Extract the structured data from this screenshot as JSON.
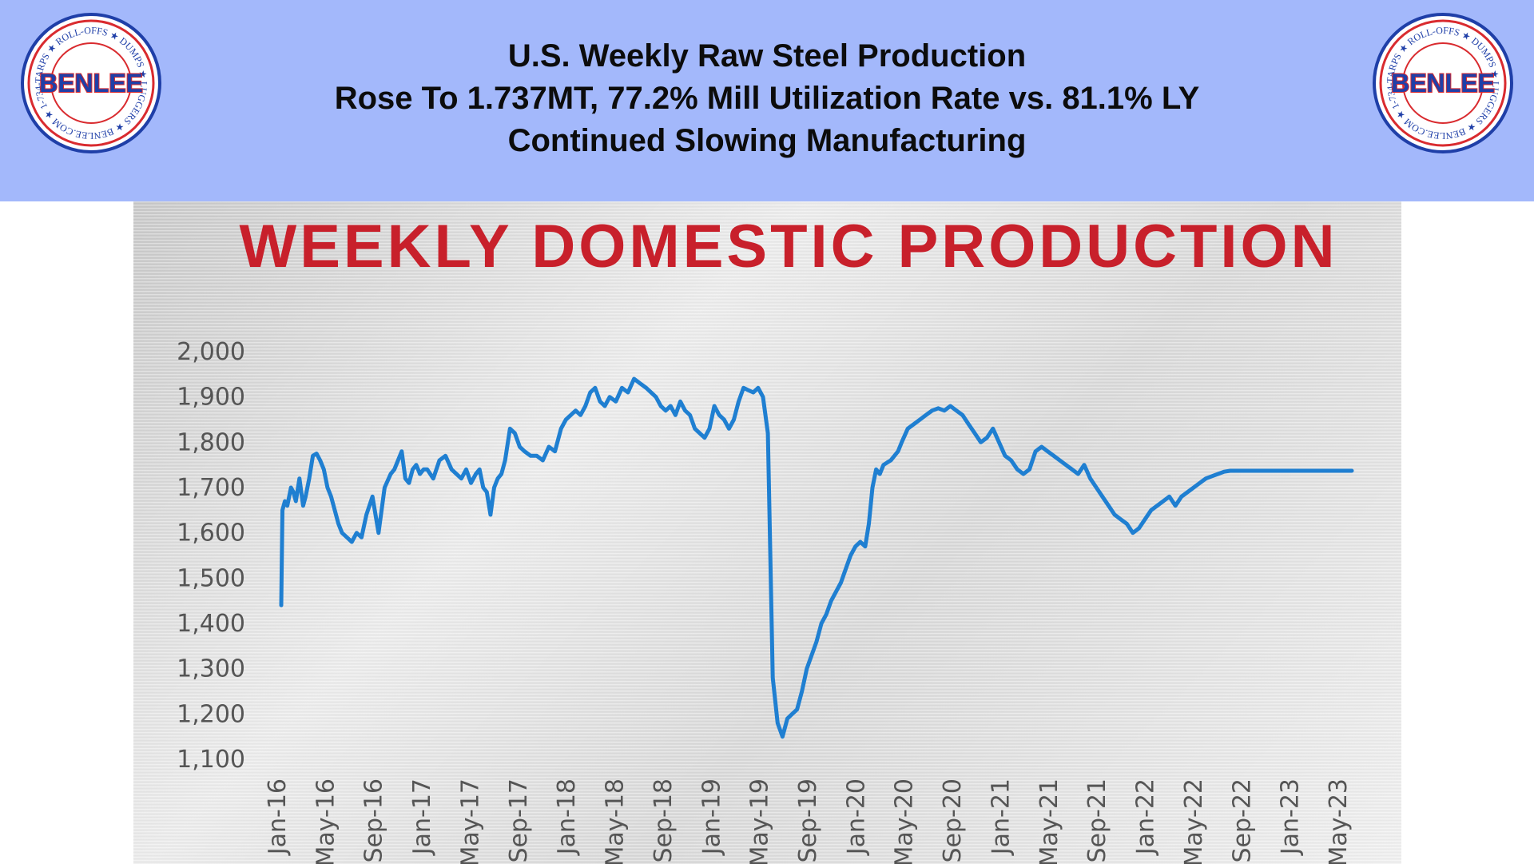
{
  "header": {
    "line1": "U.S. Weekly Raw Steel Production",
    "line2": "Rose To 1.737MT, 77.2% Mill Utilization Rate vs. 81.1% LY",
    "line3": "Continued Slowing Manufacturing",
    "background_color": "#a3b8fb"
  },
  "logo": {
    "brand": "BENLEE",
    "ring_text": "TARPS ★ ROLL-OFFS ★ DUMPS ★ LUGGERS ★ BENLEE.COM ★ 1-734-722-8100 ★ PARTS ★",
    "colors": {
      "red": "#d92b2f",
      "blue": "#1f3fa8"
    }
  },
  "chart_data": {
    "type": "line",
    "title": "WEEKLY DOMESTIC PRODUCTION",
    "xlabel": "",
    "ylabel": "",
    "ylim": [
      1100,
      2000
    ],
    "yticks": [
      2000,
      1900,
      1800,
      1700,
      1600,
      1500,
      1400,
      1300,
      1200,
      1100
    ],
    "ytick_labels": [
      "2,000",
      "1,900",
      "1,800",
      "1,700",
      "1,600",
      "1,500",
      "1,400",
      "1,300",
      "1,200",
      "1,100"
    ],
    "xtick_labels": [
      "Jan-16",
      "May-16",
      "Sep-16",
      "Jan-17",
      "May-17",
      "Sep-17",
      "Jan-18",
      "May-18",
      "Sep-18",
      "Jan-19",
      "May-19",
      "Sep-19",
      "Jan-20",
      "May-20",
      "Sep-20",
      "Jan-21",
      "May-21",
      "Sep-21",
      "Jan-22",
      "May-22",
      "Sep-22",
      "Jan-23",
      "May-23"
    ],
    "line_color": "#1f7fd1",
    "grid": false,
    "series": [
      {
        "x": [
          0,
          0.1,
          0.3,
          0.5,
          0.8,
          1.0,
          1.2,
          1.5,
          1.8,
          2.0,
          2.3,
          2.6,
          2.9,
          3.2,
          3.5,
          3.8,
          4.1,
          4.4,
          4.7,
          5.0,
          5.4,
          5.8,
          6.2,
          6.6,
          7.0,
          7.5,
          8.0,
          8.5,
          9.0,
          9.3,
          9.6,
          9.9,
          10.2,
          10.5,
          10.8,
          11.1,
          11.4,
          11.7,
          12.0,
          12.5,
          13.0,
          13.5,
          14.0,
          14.4,
          14.8,
          15.2,
          15.6,
          16.0,
          16.3,
          16.6,
          16.9,
          17.2,
          17.5,
          17.8,
          18.1,
          18.4,
          18.8,
          19.2,
          19.6,
          20.0,
          20.5,
          21.0,
          21.5,
          22.0,
          22.5,
          23.0,
          23.4,
          23.8,
          24.2,
          24.6,
          25.0,
          25.4,
          25.8,
          26.2,
          26.6,
          27.0,
          27.5,
          28.0,
          28.5,
          29.0,
          29.5,
          30.0,
          30.4,
          30.8,
          31.2,
          31.6,
          32.0,
          32.4,
          32.8,
          33.2,
          33.6,
          34.0,
          34.4,
          34.8,
          35.2,
          35.6,
          36.0,
          36.4,
          36.8,
          37.2,
          37.6,
          38.0,
          38.4,
          38.8,
          39.2,
          39.6,
          40.0,
          40.4,
          40.8,
          41.2,
          41.6,
          42.0,
          42.4,
          42.8,
          43.2,
          43.6,
          44.0,
          44.4,
          44.8,
          45.2,
          45.6,
          46.0,
          46.4,
          46.8,
          47.2,
          47.6,
          48.0,
          48.3,
          48.6,
          48.9,
          49.2,
          49.5,
          49.8,
          50.1,
          50.4,
          50.7,
          51.0,
          51.5,
          52.0,
          52.5,
          53.0,
          53.5,
          54.0,
          54.5,
          55.0,
          55.5,
          56.0,
          56.5,
          57.0,
          57.5,
          58.0,
          58.5,
          59.0,
          59.5,
          60.0,
          60.5,
          61.0,
          61.5,
          62.0,
          62.5,
          63.0,
          63.5,
          64.0,
          64.5,
          65.0,
          65.5,
          66.0,
          66.5,
          67.0,
          67.5,
          68.0,
          68.5,
          69.0,
          69.5,
          70.0,
          70.5,
          71.0,
          71.5,
          72.0,
          72.5,
          73.0,
          73.5,
          74.0,
          74.5,
          75.0,
          75.5,
          76.0,
          76.5,
          77.0,
          77.5,
          78.0,
          78.5,
          79.0,
          79.5,
          80.0,
          80.5,
          81.0,
          81.5,
          82.0,
          82.5,
          83.0,
          83.5,
          84.0,
          84.5,
          85.0,
          85.5,
          86.0,
          86.5,
          87.0,
          87.5,
          88.0
        ],
        "values": [
          1440,
          1650,
          1670,
          1660,
          1700,
          1690,
          1670,
          1720,
          1660,
          1680,
          1720,
          1770,
          1775,
          1760,
          1740,
          1700,
          1680,
          1650,
          1620,
          1600,
          1590,
          1580,
          1600,
          1590,
          1640,
          1680,
          1600,
          1700,
          1730,
          1740,
          1760,
          1780,
          1720,
          1710,
          1740,
          1750,
          1730,
          1740,
          1740,
          1720,
          1760,
          1770,
          1740,
          1730,
          1720,
          1740,
          1710,
          1730,
          1740,
          1700,
          1690,
          1640,
          1700,
          1720,
          1730,
          1760,
          1830,
          1820,
          1790,
          1780,
          1770,
          1770,
          1760,
          1790,
          1780,
          1830,
          1850,
          1860,
          1870,
          1860,
          1880,
          1910,
          1920,
          1890,
          1880,
          1900,
          1890,
          1920,
          1910,
          1940,
          1930,
          1920,
          1910,
          1900,
          1880,
          1870,
          1880,
          1860,
          1890,
          1870,
          1860,
          1830,
          1820,
          1810,
          1830,
          1880,
          1860,
          1850,
          1830,
          1850,
          1890,
          1920,
          1915,
          1910,
          1920,
          1900,
          1820,
          1280,
          1180,
          1150,
          1190,
          1200,
          1210,
          1250,
          1300,
          1330,
          1360,
          1400,
          1420,
          1450,
          1470,
          1490,
          1520,
          1550,
          1570,
          1580,
          1570,
          1620,
          1700,
          1740,
          1730,
          1750,
          1755,
          1760,
          1770,
          1780,
          1800,
          1830,
          1840,
          1850,
          1860,
          1870,
          1875,
          1870,
          1880,
          1870,
          1860,
          1840,
          1820,
          1800,
          1810,
          1830,
          1800,
          1770,
          1760,
          1740,
          1730,
          1740,
          1780,
          1790,
          1780,
          1770,
          1760,
          1750,
          1740,
          1730,
          1750,
          1720,
          1700,
          1680,
          1660,
          1640,
          1630,
          1620,
          1600,
          1610,
          1630,
          1650,
          1660,
          1670,
          1680,
          1660,
          1680,
          1690,
          1700,
          1710,
          1720,
          1725,
          1730,
          1735,
          1737,
          1737,
          1737,
          1737,
          1737,
          1737,
          1737,
          1737,
          1737,
          1737,
          1737,
          1737,
          1737,
          1737,
          1737,
          1737,
          1737,
          1737,
          1737,
          1737,
          1737
        ]
      }
    ]
  }
}
